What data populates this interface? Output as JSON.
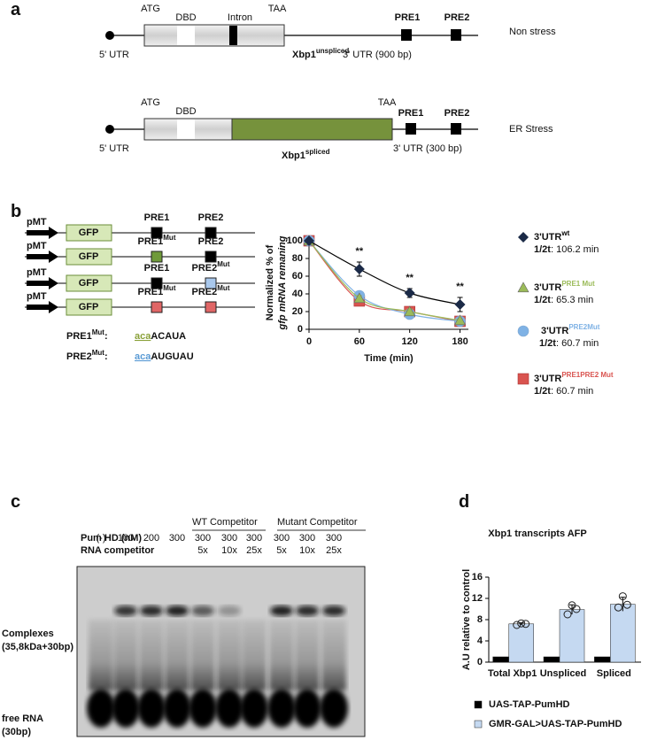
{
  "figure": {
    "panel_labels": [
      "a",
      "b",
      "c",
      "d"
    ],
    "a": {
      "rows": [
        {
          "atg": "ATG",
          "dbd": "DBD",
          "intron": "Intron",
          "taa": "TAA",
          "pre1": "PRE1",
          "pre2": "PRE2",
          "utr5": "5' UTR",
          "gene": "Xbp1",
          "gene_sup": "unspliced",
          "utr3": "3' UTR (900 bp)",
          "condition": "Non stress"
        },
        {
          "atg": "ATG",
          "dbd": "DBD",
          "taa": "TAA",
          "pre1": "PRE1",
          "pre2": "PRE2",
          "utr5": "5' UTR",
          "gene": "Xbp1",
          "gene_sup": "spliced",
          "utr3": "3' UTR (300 bp)",
          "condition": "ER Stress"
        }
      ]
    },
    "b": {
      "constructs": [
        {
          "promoter": "pMT",
          "reporter": "GFP",
          "pre1": "PRE1",
          "pre2": "PRE2"
        },
        {
          "promoter": "pMT",
          "reporter": "GFP",
          "pre1": "PRE1",
          "pre1_sup": "Mut",
          "pre2": "PRE2"
        },
        {
          "promoter": "pMT",
          "reporter": "GFP",
          "pre1": "PRE1",
          "pre2": "PRE2",
          "pre2_sup": "Mut"
        },
        {
          "promoter": "pMT",
          "reporter": "GFP",
          "pre1": "PRE1",
          "pre1_sup": "Mut",
          "pre2": "PRE2",
          "pre2_sup": "Mut"
        }
      ],
      "mutations": [
        {
          "name": "PRE1",
          "sup": "Mut",
          "sep": ":",
          "mut": "aca",
          "seq": "ACAUA",
          "color": "#8aa13a"
        },
        {
          "name": "PRE2",
          "sup": "Mut",
          "sep": ":",
          "mut": "aca",
          "seq": "AUGUAU",
          "color": "#5b9bd5"
        }
      ]
    },
    "c": {
      "groups": [
        "WT Competitor",
        "Mutant Competitor"
      ],
      "row_labels": [
        "Pum HD (nM)",
        "RNA competitor"
      ],
      "pum": [
        "(-)",
        "100",
        "200",
        "300",
        "300",
        "300",
        "300",
        "300",
        "300",
        "300"
      ],
      "competitor": [
        null,
        null,
        null,
        null,
        "5x",
        "10x",
        "25x",
        "5x",
        "10x",
        "25x"
      ],
      "band_labels": [
        "Complexes",
        "(35,8kDa+30bp)",
        "free RNA",
        "(30bp)"
      ]
    }
  },
  "chart_data": [
    {
      "type": "line",
      "x_label": "Time (min)",
      "y_label": [
        "Normalized % of",
        "gfp mRNA remaning"
      ],
      "x": [
        0,
        60,
        120,
        180
      ],
      "xlim": [
        0,
        190
      ],
      "xticks": [
        0,
        60,
        120,
        180
      ],
      "ylim": [
        0,
        105
      ],
      "yticks": [
        0,
        20,
        40,
        60,
        80,
        100
      ],
      "half_life_label": "1/2t",
      "series": [
        {
          "name": "3'UTR",
          "name_sup": "wt",
          "half_life": ": 106.2 min",
          "marker": "diamond",
          "color": "#1b2a47",
          "values": [
            100,
            68,
            41,
            28
          ],
          "errors": [
            0,
            8,
            5,
            8
          ]
        },
        {
          "name": "3'UTR",
          "name_sup": "PRE1 Mut",
          "half_life": ": 65.3 min",
          "marker": "triangle",
          "color": "#9bbb59",
          "values": [
            100,
            35,
            20,
            10
          ],
          "errors": [
            0,
            3,
            3,
            2
          ]
        },
        {
          "name": "3'UTR",
          "name_sup": "PRE2Mut",
          "half_life": ": 60.7 min",
          "marker": "circle",
          "color": "#7fb2e5",
          "values": [
            100,
            38,
            17,
            9
          ],
          "errors": [
            0,
            3,
            3,
            2
          ]
        },
        {
          "name": "3'UTR",
          "name_sup": "PRE1PRE2 Mut",
          "half_life": ": 60.7 min",
          "marker": "square",
          "color": "#d9534f",
          "values": [
            100,
            32,
            20,
            9
          ],
          "errors": [
            0,
            4,
            3,
            2
          ]
        }
      ],
      "annotations": [
        {
          "text": "**",
          "x": 60
        },
        {
          "text": "**",
          "x": 120
        },
        {
          "text": "**",
          "x": 180
        }
      ]
    },
    {
      "type": "bar",
      "title": "Xbp1 transcripts AFP",
      "y_label": "A.U relative to control",
      "categories": [
        "Total Xbp1",
        "Unspliced",
        "Spliced"
      ],
      "ylim": [
        0,
        16
      ],
      "yticks": [
        0,
        4,
        8,
        12,
        16
      ],
      "series": [
        {
          "name": "UAS-TAP-PumHD",
          "color": "#000000",
          "values": [
            1,
            1,
            1
          ]
        },
        {
          "name": "GMR-GAL>UAS-TAP-PumHD",
          "color": "#c5d9f1",
          "values": [
            7.2,
            9.9,
            10.9
          ],
          "errors": [
            0.2,
            0.9,
            1.3
          ],
          "points": [
            [
              7.0,
              7.2,
              7.3
            ],
            [
              9.0,
              10.0,
              10.7
            ],
            [
              10.3,
              10.8,
              12.4
            ]
          ]
        }
      ]
    }
  ]
}
